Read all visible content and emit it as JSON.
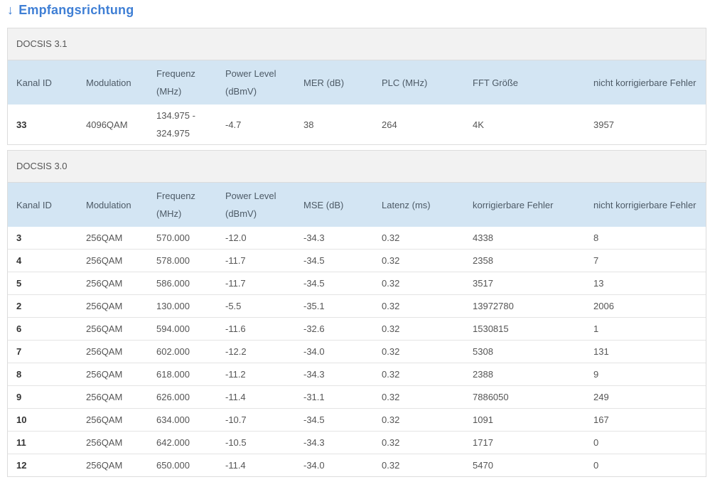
{
  "page": {
    "title_arrow": "↓",
    "title": "Empfangsrichtung"
  },
  "colors": {
    "accent_blue": "#3f7fd5",
    "table_header_bg": "#d3e5f3",
    "section_header_bg": "#f2f2f2",
    "border": "#dcdcdc",
    "text_primary": "#333333",
    "text_secondary": "#555555"
  },
  "tables": [
    {
      "section": "DOCSIS 3.1",
      "columns": [
        "Kanal ID",
        "Modulation",
        "Frequenz (MHz)",
        "Power Level (dBmV)",
        "MER (dB)",
        "PLC (MHz)",
        "FFT Größe",
        "nicht korrigierbare Fehler"
      ],
      "rows": [
        [
          "33",
          "4096QAM",
          "134.975 - 324.975",
          "-4.7",
          "38",
          "264",
          "4K",
          "3957"
        ]
      ]
    },
    {
      "section": "DOCSIS 3.0",
      "columns": [
        "Kanal ID",
        "Modulation",
        "Frequenz (MHz)",
        "Power Level (dBmV)",
        "MSE (dB)",
        "Latenz (ms)",
        "korrigierbare Fehler",
        "nicht korrigierbare Fehler"
      ],
      "rows": [
        [
          "3",
          "256QAM",
          "570.000",
          "-12.0",
          "-34.3",
          "0.32",
          "4338",
          "8"
        ],
        [
          "4",
          "256QAM",
          "578.000",
          "-11.7",
          "-34.5",
          "0.32",
          "2358",
          "7"
        ],
        [
          "5",
          "256QAM",
          "586.000",
          "-11.7",
          "-34.5",
          "0.32",
          "3517",
          "13"
        ],
        [
          "2",
          "256QAM",
          "130.000",
          "-5.5",
          "-35.1",
          "0.32",
          "13972780",
          "2006"
        ],
        [
          "6",
          "256QAM",
          "594.000",
          "-11.6",
          "-32.6",
          "0.32",
          "1530815",
          "1"
        ],
        [
          "7",
          "256QAM",
          "602.000",
          "-12.2",
          "-34.0",
          "0.32",
          "5308",
          "131"
        ],
        [
          "8",
          "256QAM",
          "618.000",
          "-11.2",
          "-34.3",
          "0.32",
          "2388",
          "9"
        ],
        [
          "9",
          "256QAM",
          "626.000",
          "-11.4",
          "-31.1",
          "0.32",
          "7886050",
          "249"
        ],
        [
          "10",
          "256QAM",
          "634.000",
          "-10.7",
          "-34.5",
          "0.32",
          "1091",
          "167"
        ],
        [
          "11",
          "256QAM",
          "642.000",
          "-10.5",
          "-34.3",
          "0.32",
          "1717",
          "0"
        ],
        [
          "12",
          "256QAM",
          "650.000",
          "-11.4",
          "-34.0",
          "0.32",
          "5470",
          "0"
        ]
      ]
    }
  ]
}
